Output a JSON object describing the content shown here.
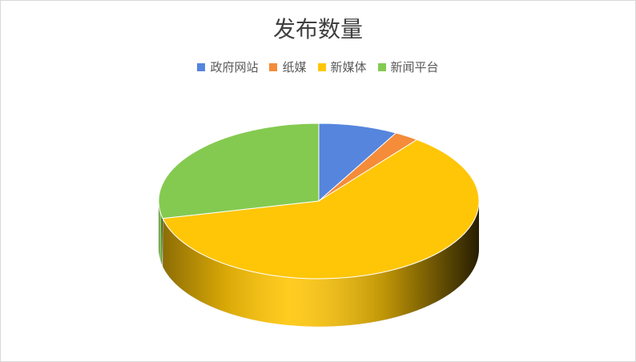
{
  "chart_data": {
    "type": "pie",
    "style": "3d",
    "title": "发布数量",
    "legend_position": "top",
    "categories": [
      "政府网站",
      "纸媒",
      "新媒体",
      "新闻平台"
    ],
    "values": [
      8.0,
      2.5,
      60.9,
      28.6
    ],
    "value_unit": "percent (estimated)",
    "colors": [
      "#5585DD",
      "#F48C3A",
      "#FFC608",
      "#84CA50"
    ]
  }
}
